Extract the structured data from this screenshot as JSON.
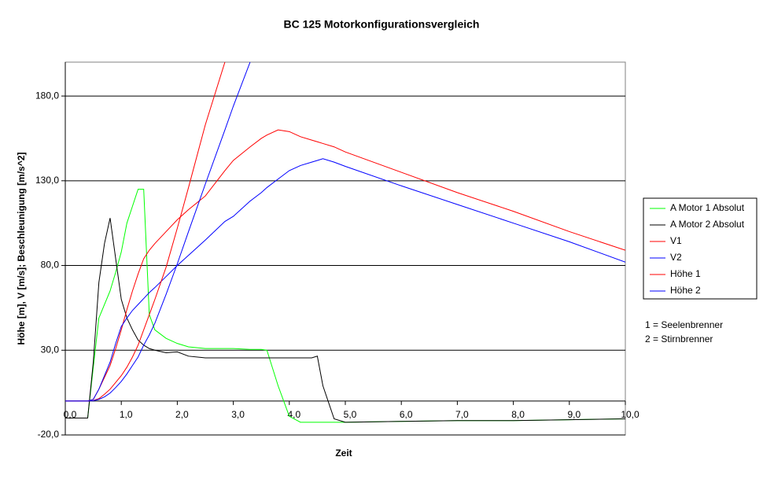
{
  "chart_data": {
    "type": "line",
    "title": "BC 125 Motorkonfigurationsvergleich",
    "x_label": "Zeit",
    "y_label": "Höhe [m], V [m/s]; Beschleunigung [m/s^2]",
    "x": [
      0,
      0.4,
      0.5,
      0.6,
      0.7,
      0.8,
      0.9,
      1.0,
      1.1,
      1.2,
      1.3,
      1.4,
      1.5,
      1.6,
      1.8,
      2.0,
      2.2,
      2.5,
      2.85,
      3.0,
      3.3,
      3.5,
      3.6,
      3.8,
      4.0,
      4.2,
      4.4,
      4.5,
      4.6,
      4.8,
      5.0,
      6,
      7,
      8,
      9,
      10
    ],
    "series": [
      {
        "name": "A Motor 1 Absolut",
        "color": "#00ff00",
        "values": [
          -10,
          -10,
          20,
          49,
          57,
          65,
          76,
          88,
          105,
          115,
          125,
          125,
          51,
          42,
          37,
          34,
          32,
          31,
          31,
          31,
          30.5,
          30.5,
          30,
          9,
          -9,
          -12.5,
          -12.5,
          -12.5,
          -12.5,
          -12.5,
          -12.5,
          -12,
          -11.5,
          -11.5,
          -11,
          -10.5
        ]
      },
      {
        "name": "A Motor 2 Absolut",
        "color": "#000000",
        "values": [
          -10,
          -10,
          23,
          70,
          93,
          108,
          84,
          60,
          49,
          42,
          36,
          33,
          31,
          30,
          28.5,
          29,
          26.5,
          25.5,
          25.5,
          25.5,
          25.5,
          25.5,
          25.5,
          25.5,
          25.5,
          25.5,
          25.5,
          26.5,
          9,
          -10.5,
          -12.5,
          -12,
          -11.5,
          -11.5,
          -11,
          -10.5
        ]
      },
      {
        "name": "V1",
        "color": "#ff0000",
        "values": [
          0,
          0,
          1,
          7,
          14,
          21,
          31,
          42,
          54,
          65,
          75,
          84,
          89,
          93,
          100,
          107,
          113,
          121,
          136,
          142,
          150,
          155,
          157,
          160,
          159,
          156,
          154,
          153,
          152,
          150,
          147,
          135,
          123,
          112,
          100,
          89
        ]
      },
      {
        "name": "V2",
        "color": "#0000ff",
        "values": [
          0,
          0,
          1,
          7,
          15,
          23,
          34,
          44,
          49,
          53.5,
          57,
          60.5,
          64,
          67,
          73.5,
          80,
          86,
          95,
          106,
          109,
          118,
          123,
          126,
          131,
          136,
          139,
          141,
          142,
          143,
          141,
          138.5,
          127,
          116,
          105,
          94,
          82
        ]
      },
      {
        "name": "Höhe 1",
        "color": "#ff0000",
        "values": [
          0,
          0,
          0.3,
          1.4,
          4,
          7,
          11,
          15,
          20,
          26,
          33,
          42,
          51,
          60,
          79,
          102,
          126,
          163,
          200,
          null,
          null,
          null,
          null,
          null,
          null,
          null,
          null,
          null,
          null,
          null,
          null,
          null,
          null,
          null,
          null,
          null
        ]
      },
      {
        "name": "Höhe 2",
        "color": "#0000ff",
        "values": [
          0,
          0,
          0.2,
          1,
          2.5,
          4.7,
          8,
          11.6,
          16,
          21,
          26,
          33,
          39,
          46,
          63,
          81,
          100,
          128,
          160,
          174,
          200,
          null,
          null,
          null,
          null,
          null,
          null,
          null,
          null,
          null,
          null,
          null,
          null,
          null,
          null,
          null
        ]
      }
    ],
    "xlim": [
      0,
      10
    ],
    "ylim": [
      -20,
      200
    ],
    "xticks": [
      {
        "value": 0,
        "label": "0,0"
      },
      {
        "value": 1,
        "label": "1,0"
      },
      {
        "value": 2,
        "label": "2,0"
      },
      {
        "value": 3,
        "label": "3,0"
      },
      {
        "value": 4,
        "label": "4,0"
      },
      {
        "value": 5,
        "label": "5,0"
      },
      {
        "value": 6,
        "label": "6,0"
      },
      {
        "value": 7,
        "label": "7,0"
      },
      {
        "value": 8,
        "label": "8,0"
      },
      {
        "value": 9,
        "label": "9,0"
      },
      {
        "value": 10,
        "label": "10,0"
      }
    ],
    "yticks": [
      {
        "value": -20,
        "label": "-20,0"
      },
      {
        "value": 30,
        "label": "30,0"
      },
      {
        "value": 80,
        "label": "80,0"
      },
      {
        "value": 130,
        "label": "130,0"
      },
      {
        "value": 180,
        "label": "180,0"
      }
    ],
    "grid": true,
    "legend": "right",
    "annotations": [
      "1 = Seelenbrenner",
      "2 = Stirnbrenner"
    ]
  }
}
